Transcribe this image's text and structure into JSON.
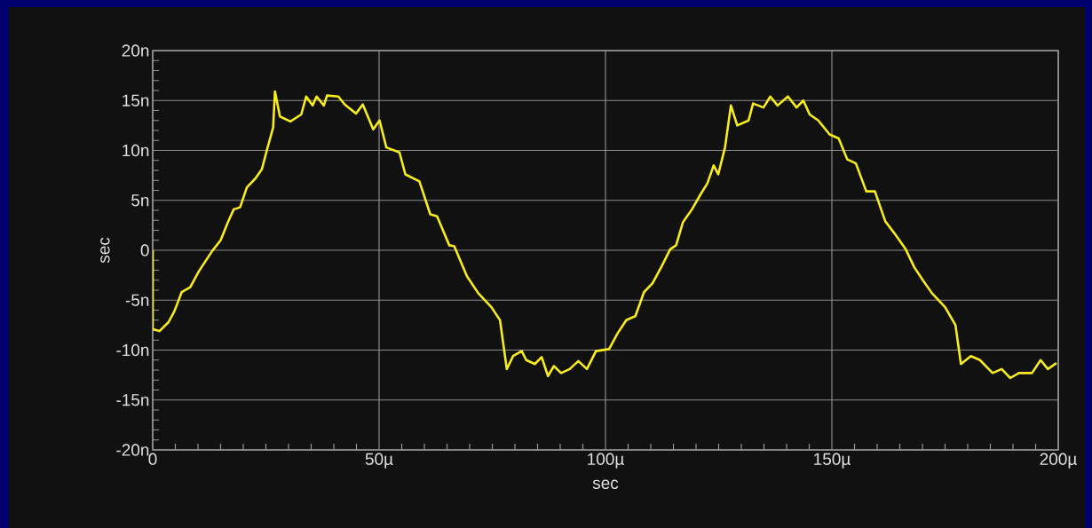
{
  "chart_data": {
    "type": "line",
    "xlabel": "sec",
    "ylabel": "sec",
    "xlim": [
      0,
      200
    ],
    "ylim": [
      -20,
      20
    ],
    "xticks": [
      0,
      {
        "value": 50,
        "label": "50µ"
      },
      {
        "value": 100,
        "label": "100µ"
      },
      {
        "value": 150,
        "label": "150µ"
      },
      {
        "value": 200,
        "label": "200µ"
      }
    ],
    "yticks": [
      {
        "value": -20,
        "label": "-20n"
      },
      {
        "value": -15,
        "label": "-15n"
      },
      {
        "value": -10,
        "label": "-10n"
      },
      {
        "value": -5,
        "label": "-5n"
      },
      0,
      {
        "value": 5,
        "label": "5n"
      },
      {
        "value": 10,
        "label": "10n"
      },
      {
        "value": 15,
        "label": "15n"
      },
      {
        "value": 20,
        "label": "20n"
      }
    ],
    "grid": true,
    "marker": "none",
    "line_style": "solid",
    "series": [
      {
        "color": "#f8ec1c",
        "x": [
          0,
          0,
          1.5,
          3.5,
          4.8,
          6.4,
          8.3,
          10.2,
          13.1,
          15,
          16.6,
          17.9,
          19.3,
          20.8,
          22.7,
          24.1,
          25.2,
          26.6,
          27,
          28.1,
          30.4,
          32.8,
          33.9,
          35.3,
          36.2,
          37.8,
          38.5,
          41.0,
          42.4,
          44.9,
          46.4,
          48.7,
          50.1,
          51.6,
          54.5,
          55.8,
          58.9,
          61.3,
          62.8,
          65.5,
          66.6,
          69.4,
          71.9,
          74.8,
          76.7,
          78.2,
          79.6,
          81.5,
          82.5,
          84.4,
          85.9,
          87.3,
          88.6,
          90.2,
          92.1,
          94.0,
          95.9,
          97.9,
          100.8,
          102.7,
          104.6,
          106.6,
          108.5,
          110.4,
          112.3,
          114.3,
          115.6,
          117.1,
          119.1,
          121.0,
          122.5,
          123.9,
          124.9,
          126.4,
          127.7,
          129.1,
          131.6,
          132.6,
          134.9,
          136.4,
          138.0,
          140.3,
          142.2,
          143.7,
          145.1,
          147.0,
          149.5,
          151.5,
          153.4,
          155.3,
          157.6,
          159.5,
          161.8,
          163.8,
          166.3,
          168.2,
          170.1,
          172.1,
          175.0,
          177.3,
          178.5,
          180.7,
          182.7,
          185.5,
          187.5,
          189.4,
          191.3,
          194.2,
          196.1,
          197.7,
          199.6
        ],
        "values": [
          0,
          -7.9,
          -8.1,
          -7.2,
          -6.1,
          -4.2,
          -3.7,
          -2.1,
          -0.1,
          1.0,
          2.8,
          4.1,
          4.3,
          6.3,
          7.2,
          8.1,
          10.0,
          12.3,
          15.9,
          13.4,
          12.9,
          13.6,
          15.4,
          14.5,
          15.4,
          14.5,
          15.5,
          15.4,
          14.6,
          13.7,
          14.6,
          12.1,
          13.0,
          10.3,
          9.8,
          7.6,
          6.9,
          3.6,
          3.4,
          0.5,
          0.4,
          -2.6,
          -4.3,
          -5.7,
          -7.0,
          -11.9,
          -10.6,
          -10.1,
          -11.0,
          -11.4,
          -10.7,
          -12.6,
          -11.6,
          -12.3,
          -11.9,
          -11.1,
          -11.9,
          -10.1,
          -9.9,
          -8.3,
          -7.0,
          -6.6,
          -4.2,
          -3.3,
          -1.7,
          0.1,
          0.5,
          2.8,
          4.1,
          5.6,
          6.7,
          8.5,
          7.6,
          10.3,
          14.5,
          12.5,
          13.0,
          14.7,
          14.3,
          15.4,
          14.5,
          15.4,
          14.3,
          15.0,
          13.6,
          13.0,
          11.6,
          11.2,
          9.1,
          8.7,
          5.9,
          5.9,
          2.9,
          1.7,
          0.1,
          -1.7,
          -3.0,
          -4.3,
          -5.7,
          -7.5,
          -11.4,
          -10.6,
          -11.0,
          -12.3,
          -11.9,
          -12.8,
          -12.3,
          -12.3,
          -11.0,
          -11.9,
          -11.3
        ]
      }
    ]
  }
}
